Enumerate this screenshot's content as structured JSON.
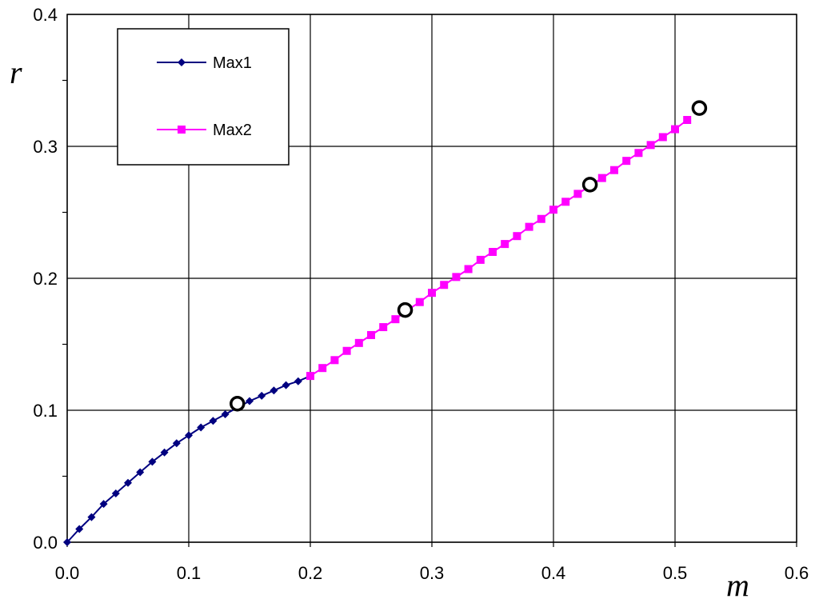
{
  "chart_data": {
    "type": "line",
    "title": "",
    "xlabel": "m",
    "ylabel": "r",
    "xlim": [
      0.0,
      0.6
    ],
    "ylim": [
      0.0,
      0.4
    ],
    "x_ticks": [
      "0.0",
      "0.1",
      "0.2",
      "0.3",
      "0.4",
      "0.5",
      "0.6"
    ],
    "y_ticks": [
      "0.0",
      "0.1",
      "0.2",
      "0.3",
      "0.4"
    ],
    "grid": true,
    "legend_position": "top-left",
    "series": [
      {
        "name": "Max1",
        "color": "#000080",
        "marker": "diamond",
        "x": [
          0.0,
          0.01,
          0.02,
          0.03,
          0.04,
          0.05,
          0.06,
          0.07,
          0.08,
          0.09,
          0.1,
          0.11,
          0.12,
          0.13,
          0.14,
          0.15,
          0.16,
          0.17,
          0.18,
          0.19,
          0.2
        ],
        "y": [
          0.0,
          0.01,
          0.019,
          0.029,
          0.037,
          0.045,
          0.053,
          0.061,
          0.068,
          0.075,
          0.081,
          0.087,
          0.092,
          0.097,
          0.102,
          0.107,
          0.111,
          0.115,
          0.119,
          0.122,
          0.126
        ]
      },
      {
        "name": "Max2",
        "color": "#ff00ff",
        "marker": "square",
        "x": [
          0.2,
          0.21,
          0.22,
          0.23,
          0.24,
          0.25,
          0.26,
          0.27,
          0.28,
          0.29,
          0.3,
          0.31,
          0.32,
          0.33,
          0.34,
          0.35,
          0.36,
          0.37,
          0.38,
          0.39,
          0.4,
          0.41,
          0.42,
          0.43,
          0.44,
          0.45,
          0.46,
          0.47,
          0.48,
          0.49,
          0.5,
          0.51
        ],
        "y": [
          0.126,
          0.132,
          0.138,
          0.145,
          0.151,
          0.157,
          0.163,
          0.169,
          0.176,
          0.182,
          0.189,
          0.195,
          0.201,
          0.207,
          0.214,
          0.22,
          0.226,
          0.232,
          0.239,
          0.245,
          0.252,
          0.258,
          0.264,
          0.27,
          0.276,
          0.282,
          0.289,
          0.295,
          0.301,
          0.307,
          0.313,
          0.32
        ]
      }
    ],
    "extra_points": {
      "marker": "open-circle",
      "color": "#000000",
      "x": [
        0.14,
        0.278,
        0.43,
        0.52
      ],
      "y": [
        0.105,
        0.176,
        0.271,
        0.329
      ]
    }
  }
}
